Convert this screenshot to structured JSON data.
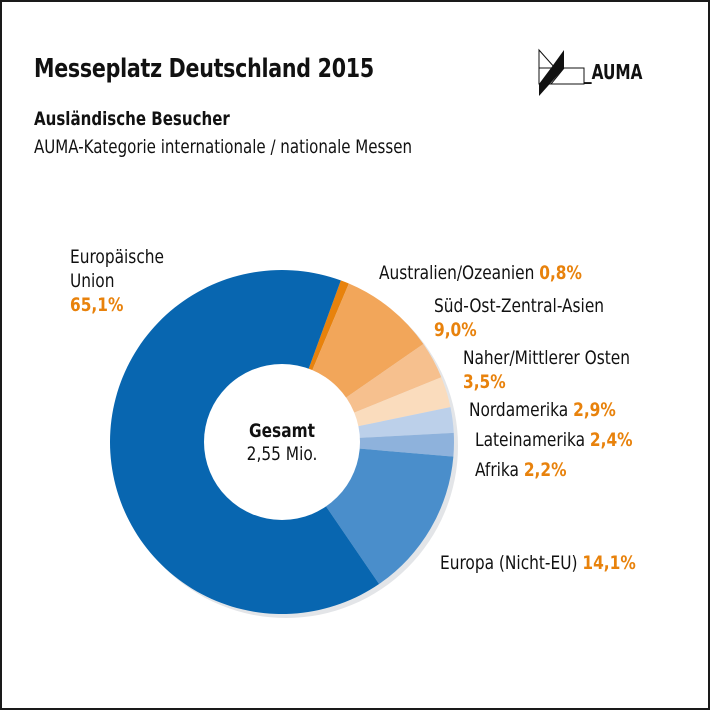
{
  "header": {
    "title": "Messeplatz Deutschland 2015",
    "subtitle": "Ausländische Besucher",
    "subtitle2": "AUMA-Kategorie internationale / nationale Messen",
    "logo_text": "_AUMA"
  },
  "center": {
    "title": "Gesamt",
    "value": "2,55 Mio."
  },
  "chart_data": {
    "type": "pie",
    "variant": "donut",
    "title": "Messeplatz Deutschland 2015",
    "subtitle": "Ausländische Besucher – AUMA-Kategorie internationale / nationale Messen",
    "total_label": "Gesamt 2,55 Mio.",
    "order": "clockwise",
    "slices": [
      {
        "name": "Australien/Ozeanien",
        "value": 0.8,
        "label": "0,8%",
        "color": "#e8820c"
      },
      {
        "name": "Süd-Ost-Zentral-Asien",
        "value": 9.0,
        "label": "9,0%",
        "color": "#f2a65a"
      },
      {
        "name": "Naher/Mittlerer Osten",
        "value": 3.5,
        "label": "3,5%",
        "color": "#f6c08e"
      },
      {
        "name": "Nordamerika",
        "value": 2.9,
        "label": "2,9%",
        "color": "#fadcbd"
      },
      {
        "name": "Lateinamerika",
        "value": 2.4,
        "label": "2,4%",
        "color": "#bcd0ea"
      },
      {
        "name": "Afrika",
        "value": 2.2,
        "label": "2,2%",
        "color": "#8eb2dc"
      },
      {
        "name": "Europa (Nicht-EU)",
        "value": 14.1,
        "label": "14,1%",
        "color": "#4a8ecb"
      },
      {
        "name": "Europäische Union",
        "value": 65.1,
        "label": "65,1%",
        "color": "#0866b0"
      }
    ],
    "unit": "%"
  },
  "labels": {
    "eu_line1": "Europäische",
    "eu_line2": "Union",
    "eu_pct": "65,1%",
    "aus": "Australien/Ozeanien",
    "aus_pct": "0,8%",
    "asia": "Süd-Ost-Zentral-Asien",
    "asia_pct": "9,0%",
    "near": "Naher/Mittlerer Osten",
    "near_pct": "3,5%",
    "na": "Nordamerika",
    "na_pct": "2,9%",
    "la": "Lateinamerika",
    "la_pct": "2,4%",
    "af": "Afrika",
    "af_pct": "2,2%",
    "eur": "Europa (Nicht-EU)",
    "eur_pct": "14,1%"
  }
}
